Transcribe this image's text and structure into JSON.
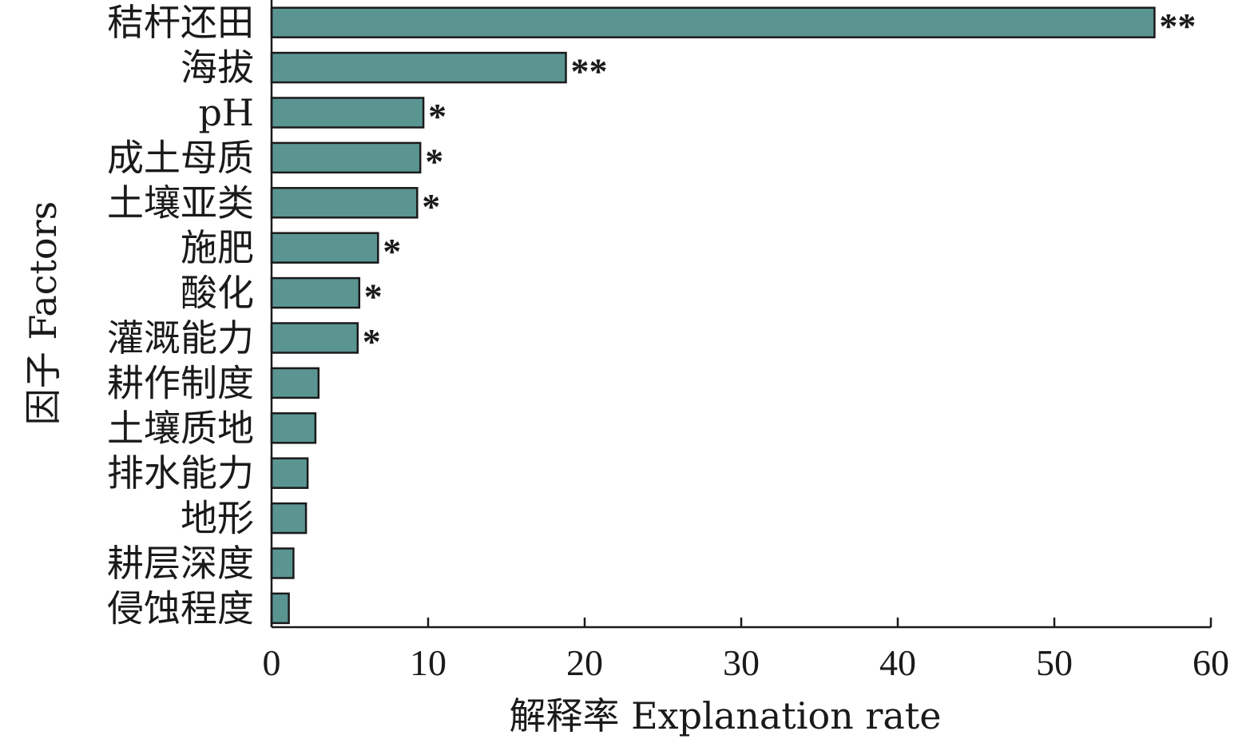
{
  "chart_data": {
    "type": "bar",
    "orientation": "horizontal",
    "categories": [
      "秸杆还田",
      "海拔",
      "pH",
      "成土母质",
      "土壤亚类",
      "施肥",
      "酸化",
      "灌溉能力",
      "耕作制度",
      "土壤质地",
      "排水能力",
      "地形",
      "耕层深度",
      "侵蚀程度"
    ],
    "values": [
      56.4,
      18.8,
      9.7,
      9.5,
      9.3,
      6.8,
      5.6,
      5.5,
      3.0,
      2.8,
      2.3,
      2.2,
      1.4,
      1.1
    ],
    "significance": [
      "**",
      "**",
      "*",
      "*",
      "*",
      "*",
      "*",
      "*",
      "",
      "",
      "",
      "",
      "",
      ""
    ],
    "xlabel": "解释率 Explanation rate",
    "ylabel": "因子 Factors",
    "xlim": [
      0,
      60
    ],
    "xticks": [
      "0",
      "10",
      "20",
      "30",
      "40",
      "50",
      "60"
    ],
    "grid": false,
    "bar_color": "#5a9592"
  }
}
